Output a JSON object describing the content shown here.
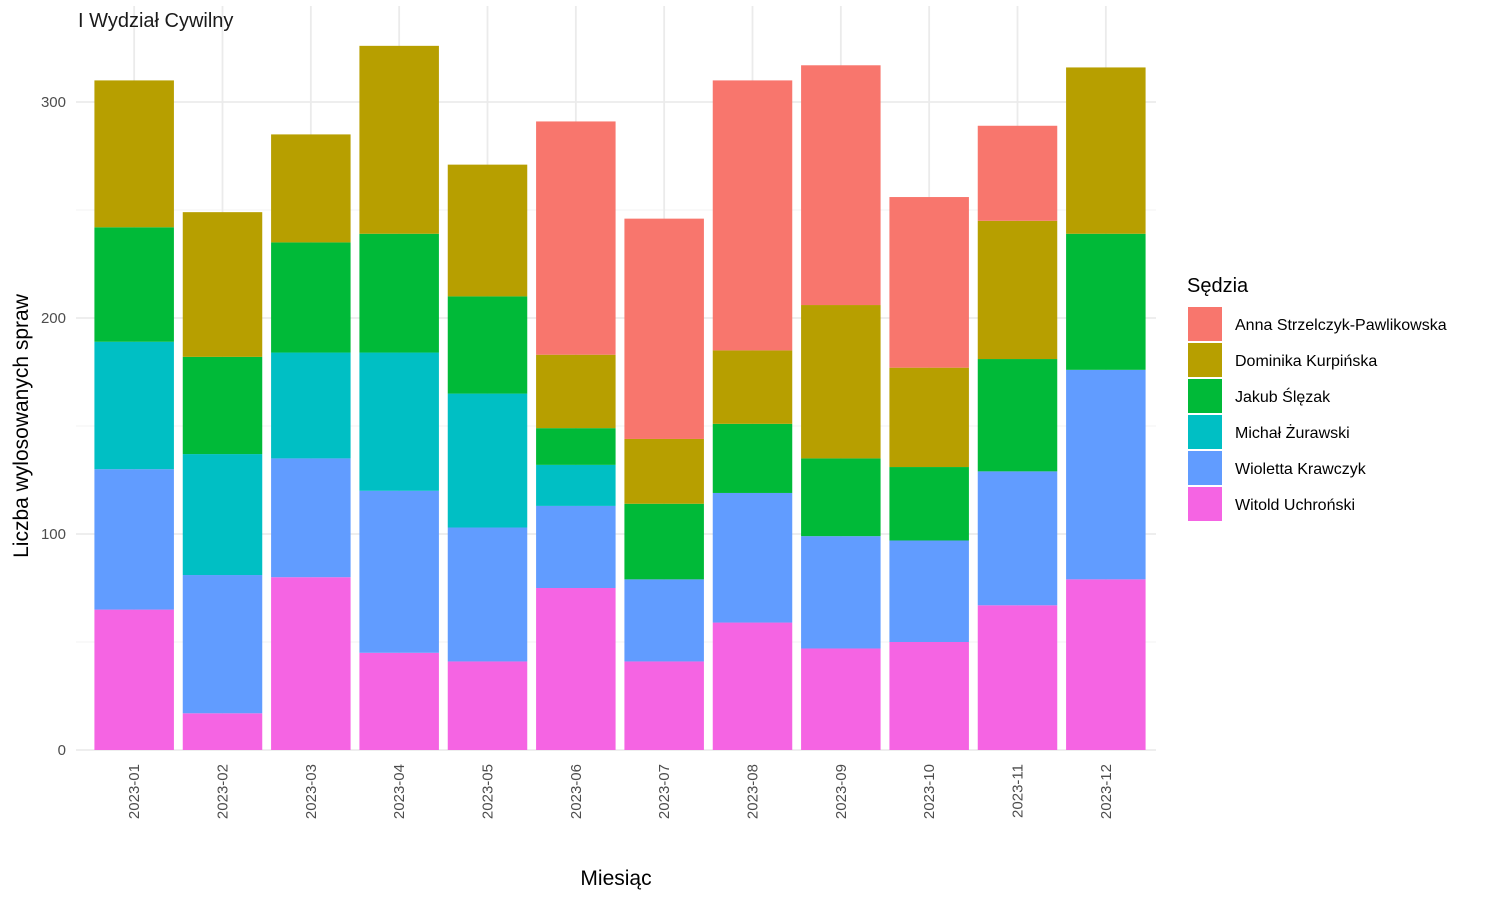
{
  "chart_data": {
    "type": "bar",
    "stacked": true,
    "title": "I Wydział Cywilny",
    "xlabel": "Miesiąc",
    "ylabel": "Liczba wylosowanych spraw",
    "ylim": [
      0,
      335
    ],
    "yticks": [
      0,
      100,
      200,
      300
    ],
    "grid": true,
    "legend_position": "right",
    "legend_title": "Sędzia",
    "categories": [
      "2023-01",
      "2023-02",
      "2023-03",
      "2023-04",
      "2023-05",
      "2023-06",
      "2023-07",
      "2023-08",
      "2023-09",
      "2023-10",
      "2023-11",
      "2023-12"
    ],
    "series": [
      {
        "name": "Anna Strzelczyk-Pawlikowska",
        "color": "#F8766D",
        "values": [
          0,
          0,
          0,
          0,
          0,
          108,
          102,
          125,
          111,
          79,
          44,
          0
        ]
      },
      {
        "name": "Dominika Kurpińska",
        "color": "#B79F00",
        "values": [
          68,
          67,
          50,
          87,
          61,
          34,
          30,
          34,
          71,
          46,
          64,
          77
        ]
      },
      {
        "name": "Jakub Ślęzak",
        "color": "#00BA38",
        "values": [
          53,
          45,
          51,
          55,
          45,
          17,
          35,
          32,
          36,
          34,
          52,
          63
        ]
      },
      {
        "name": "Michał Żurawski",
        "color": "#00BFC4",
        "values": [
          59,
          56,
          49,
          64,
          62,
          19,
          0,
          0,
          0,
          0,
          0,
          0
        ]
      },
      {
        "name": "Wioletta Krawczyk",
        "color": "#619CFF",
        "values": [
          65,
          64,
          55,
          75,
          62,
          38,
          38,
          60,
          52,
          47,
          62,
          97
        ]
      },
      {
        "name": "Witold Uchroński",
        "color": "#F564E3",
        "values": [
          65,
          17,
          80,
          45,
          41,
          75,
          41,
          59,
          47,
          50,
          67,
          79
        ]
      }
    ]
  }
}
